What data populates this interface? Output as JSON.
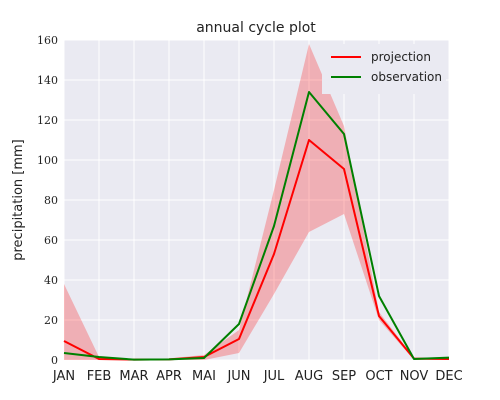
{
  "chart_data": {
    "type": "line",
    "title": "annual cycle plot",
    "xlabel": "",
    "ylabel": "precipitation [mm]",
    "categories": [
      "JAN",
      "FEB",
      "MAR",
      "APR",
      "MAI",
      "JUN",
      "JUL",
      "AUG",
      "SEP",
      "OCT",
      "NOV",
      "DEC"
    ],
    "ylim": [
      0,
      160
    ],
    "yticks": [
      0,
      20,
      40,
      60,
      80,
      100,
      120,
      140,
      160
    ],
    "grid": true,
    "legend_position": "top-right",
    "series": [
      {
        "name": "projection",
        "color": "#ff0000",
        "values": [
          9.5,
          0.5,
          0.2,
          0.3,
          1.5,
          10.5,
          53,
          110,
          95.5,
          22,
          0.7,
          0.5
        ],
        "band_lower": [
          0,
          0,
          0,
          0,
          0,
          3.5,
          33,
          64,
          73,
          20,
          0,
          0
        ],
        "band_upper": [
          38,
          1.5,
          0.5,
          0.8,
          2.5,
          15,
          85,
          158,
          117,
          24,
          1.2,
          1.2
        ]
      },
      {
        "name": "observation",
        "color": "#008000",
        "values": [
          3.5,
          1.5,
          0.2,
          0.3,
          1.0,
          18,
          67,
          134,
          113,
          32,
          0.5,
          1.2
        ]
      }
    ],
    "band_color": "#ff0000"
  }
}
